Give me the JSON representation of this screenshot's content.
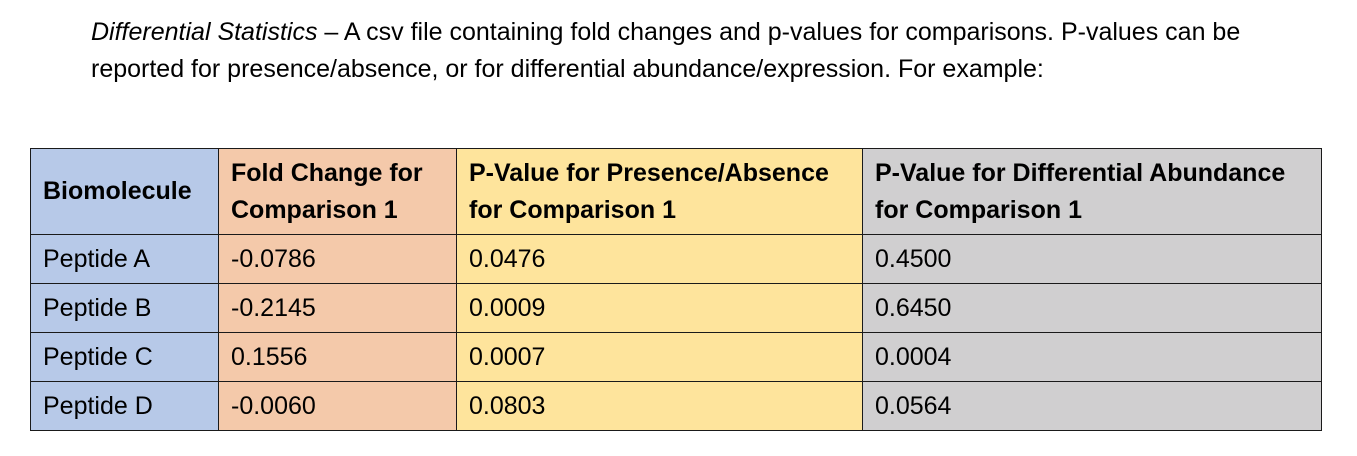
{
  "intro": {
    "term": "Differential Statistics",
    "text": " – A csv file containing fold changes and p-values for comparisons. P-values can be reported for presence/absence, or for differential abundance/expression. For example:"
  },
  "table": {
    "headers": [
      "Biomolecule",
      "Fold Change for Comparison 1",
      "P-Value for Presence/Absence for Comparison 1",
      "P-Value for Differential Abundance for Comparison 1"
    ],
    "rows": [
      [
        "Peptide A",
        "-0.0786",
        "0.0476",
        "0.4500"
      ],
      [
        "Peptide B",
        "-0.2145",
        "0.0009",
        "0.6450"
      ],
      [
        "Peptide C",
        "0.1556",
        "0.0007",
        "0.0004"
      ],
      [
        "Peptide D",
        "-0.0060",
        "0.0803",
        "0.0564"
      ]
    ]
  },
  "colors": {
    "biomolecule_column": "#b7c9e8",
    "fold_change_column": "#f4c9aa",
    "presence_absence_column": "#fee49c",
    "differential_abundance_column": "#d0cfd0"
  }
}
